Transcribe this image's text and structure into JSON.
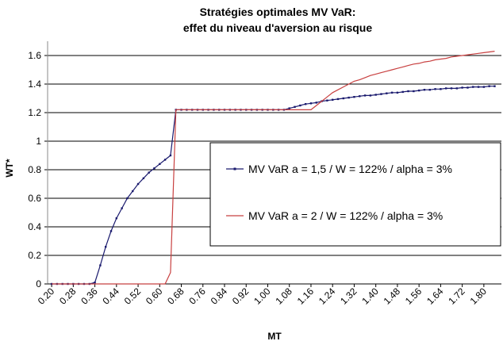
{
  "chart_data": {
    "type": "line",
    "title": [
      "Stratégies optimales MV VaR:",
      "effet du niveau d'aversion au risque"
    ],
    "x_label": "MT",
    "y_label": "WT*",
    "x": [
      0.2,
      0.22,
      0.24,
      0.26,
      0.28,
      0.3,
      0.32,
      0.34,
      0.36,
      0.38,
      0.4,
      0.42,
      0.44,
      0.46,
      0.48,
      0.5,
      0.52,
      0.54,
      0.56,
      0.58,
      0.6,
      0.62,
      0.64,
      0.66,
      0.68,
      0.7,
      0.72,
      0.74,
      0.76,
      0.78,
      0.8,
      0.82,
      0.84,
      0.86,
      0.88,
      0.9,
      0.92,
      0.94,
      0.96,
      0.98,
      1.0,
      1.02,
      1.04,
      1.06,
      1.08,
      1.1,
      1.12,
      1.14,
      1.16,
      1.18,
      1.2,
      1.22,
      1.24,
      1.26,
      1.28,
      1.3,
      1.32,
      1.34,
      1.36,
      1.38,
      1.4,
      1.42,
      1.44,
      1.46,
      1.48,
      1.5,
      1.52,
      1.54,
      1.56,
      1.58,
      1.6,
      1.62,
      1.64,
      1.66,
      1.68,
      1.7,
      1.72,
      1.74,
      1.76,
      1.78,
      1.8,
      1.82,
      1.84
    ],
    "series": [
      {
        "name": "MV VaR a = 1,5 / W = 122% / alpha = 3%",
        "color": "#1a1a6e",
        "marker": true,
        "values": [
          0,
          0,
          0,
          0,
          0,
          0,
          0,
          0,
          0.01,
          0.13,
          0.26,
          0.37,
          0.46,
          0.53,
          0.6,
          0.65,
          0.7,
          0.74,
          0.78,
          0.81,
          0.84,
          0.87,
          0.9,
          1.22,
          1.22,
          1.22,
          1.22,
          1.22,
          1.22,
          1.22,
          1.22,
          1.22,
          1.22,
          1.22,
          1.22,
          1.22,
          1.22,
          1.22,
          1.22,
          1.22,
          1.22,
          1.22,
          1.22,
          1.22,
          1.23,
          1.24,
          1.25,
          1.26,
          1.265,
          1.27,
          1.28,
          1.285,
          1.29,
          1.295,
          1.3,
          1.305,
          1.31,
          1.315,
          1.32,
          1.32,
          1.325,
          1.33,
          1.335,
          1.34,
          1.34,
          1.345,
          1.35,
          1.35,
          1.355,
          1.36,
          1.36,
          1.365,
          1.365,
          1.37,
          1.37,
          1.37,
          1.375,
          1.375,
          1.38,
          1.38,
          1.38,
          1.385,
          1.385
        ]
      },
      {
        "name": "MV VaR a = 2 / W = 122% / alpha = 3%",
        "color": "#c84040",
        "marker": false,
        "values": [
          0,
          0,
          0,
          0,
          0,
          0,
          0,
          0,
          0,
          0,
          0,
          0,
          0,
          0,
          0,
          0,
          0,
          0,
          0,
          0,
          0,
          0,
          0.08,
          1.22,
          1.22,
          1.22,
          1.22,
          1.22,
          1.22,
          1.22,
          1.22,
          1.22,
          1.22,
          1.22,
          1.22,
          1.22,
          1.22,
          1.22,
          1.22,
          1.22,
          1.22,
          1.22,
          1.22,
          1.22,
          1.22,
          1.22,
          1.22,
          1.22,
          1.22,
          1.25,
          1.28,
          1.31,
          1.34,
          1.36,
          1.38,
          1.4,
          1.42,
          1.43,
          1.445,
          1.46,
          1.47,
          1.48,
          1.49,
          1.5,
          1.51,
          1.52,
          1.53,
          1.54,
          1.545,
          1.555,
          1.56,
          1.57,
          1.575,
          1.58,
          1.59,
          1.595,
          1.6,
          1.605,
          1.61,
          1.615,
          1.62,
          1.625,
          1.63
        ]
      }
    ],
    "xlim": [
      0.185,
      1.865
    ],
    "xticks": [
      {
        "value": 0.2,
        "label": "0.20"
      },
      {
        "value": 0.28,
        "label": "0.28"
      },
      {
        "value": 0.36,
        "label": "0.36"
      },
      {
        "value": 0.44,
        "label": "0.44"
      },
      {
        "value": 0.52,
        "label": "0.52"
      },
      {
        "value": 0.6,
        "label": "0.60"
      },
      {
        "value": 0.68,
        "label": "0.68"
      },
      {
        "value": 0.76,
        "label": "0.76"
      },
      {
        "value": 0.84,
        "label": "0.84"
      },
      {
        "value": 0.92,
        "label": "0.92"
      },
      {
        "value": 1.0,
        "label": "1.00"
      },
      {
        "value": 1.08,
        "label": "1.08"
      },
      {
        "value": 1.16,
        "label": "1.16"
      },
      {
        "value": 1.24,
        "label": "1.24"
      },
      {
        "value": 1.32,
        "label": "1.32"
      },
      {
        "value": 1.4,
        "label": "1.40"
      },
      {
        "value": 1.48,
        "label": "1.48"
      },
      {
        "value": 1.56,
        "label": "1.56"
      },
      {
        "value": 1.64,
        "label": "1.64"
      },
      {
        "value": 1.72,
        "label": "1.72"
      },
      {
        "value": 1.8,
        "label": "1.80"
      }
    ],
    "ylim": [
      0,
      1.7
    ],
    "yticks": [
      0,
      0.2,
      0.4,
      0.6,
      0.8,
      1,
      1.2,
      1.4,
      1.6
    ],
    "grid": true
  }
}
